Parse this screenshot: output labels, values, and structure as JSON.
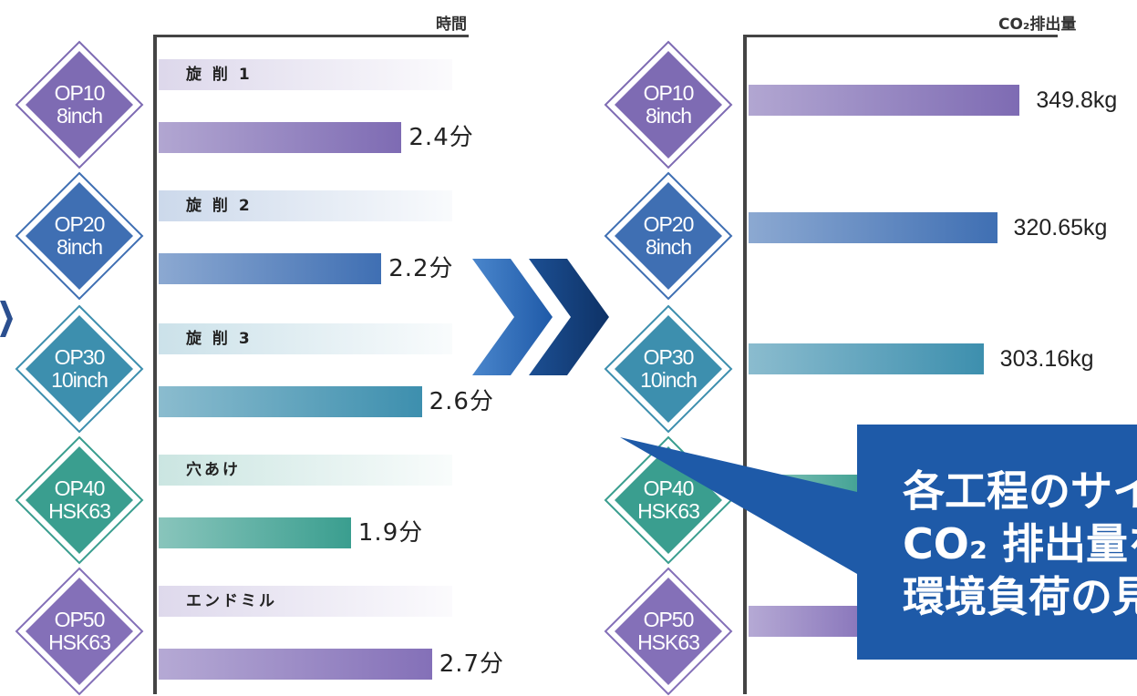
{
  "left_chart": {
    "axis_title": "時間",
    "rows": [
      {
        "process": "旋 削 1",
        "op": "OP10",
        "tool": "8inch",
        "value": 2.4,
        "value_label": "2.4分"
      },
      {
        "process": "旋 削 2",
        "op": "OP20",
        "tool": "8inch",
        "value": 2.2,
        "value_label": "2.2分"
      },
      {
        "process": "旋 削 3",
        "op": "OP30",
        "tool": "10inch",
        "value": 2.6,
        "value_label": "2.6分"
      },
      {
        "process": "穴あけ",
        "op": "OP40",
        "tool": "HSK63",
        "value": 1.9,
        "value_label": "1.9分"
      },
      {
        "process": "エンドミル",
        "op": "OP50",
        "tool": "HSK63",
        "value": 2.7,
        "value_label": "2.7分"
      }
    ]
  },
  "right_chart": {
    "axis_title": "CO₂排出量",
    "rows": [
      {
        "op": "OP10",
        "tool": "8inch",
        "value": 349.8,
        "value_label": "349.8kg"
      },
      {
        "op": "OP20",
        "tool": "8inch",
        "value": 320.65,
        "value_label": "320.65kg"
      },
      {
        "op": "OP30",
        "tool": "10inch",
        "value": 303.16,
        "value_label": "303.16kg"
      },
      {
        "op": "OP40",
        "tool": "HSK63",
        "value": null,
        "value_label": ""
      },
      {
        "op": "OP50",
        "tool": "HSK63",
        "value": null,
        "value_label": ""
      }
    ]
  },
  "callout": {
    "lines": [
      "各工程のサイ",
      "CO₂ 排出量を",
      "環境負荷の見"
    ]
  },
  "colors": {
    "op10": "#7e6bb3",
    "op20": "#3f6fb3",
    "op30": "#3d8fae",
    "op40": "#3a9e8f",
    "op50": "#8470b8",
    "chevron_light": "#2c6bb8",
    "chevron_dark": "#123f7c",
    "callout": "#1e5aa8"
  },
  "chart_data": [
    {
      "type": "bar",
      "title": "時間",
      "categories": [
        "旋 削 1",
        "旋 削 2",
        "旋 削 3",
        "穴あけ",
        "エンドミル"
      ],
      "values": [
        2.4,
        2.2,
        2.6,
        1.9,
        2.7
      ],
      "value_labels": [
        "2.4分",
        "2.2分",
        "2.6分",
        "1.9分",
        "2.7分"
      ]
    },
    {
      "type": "bar",
      "title": "CO₂排出量",
      "categories": [
        "OP10 8inch",
        "OP20 8inch",
        "OP30 10inch",
        "OP40 HSK63",
        "OP50 HSK63"
      ],
      "values": [
        349.8,
        320.65,
        303.16,
        null,
        null
      ],
      "value_labels": [
        "349.8kg",
        "320.65kg",
        "303.16kg",
        "",
        ""
      ]
    }
  ]
}
